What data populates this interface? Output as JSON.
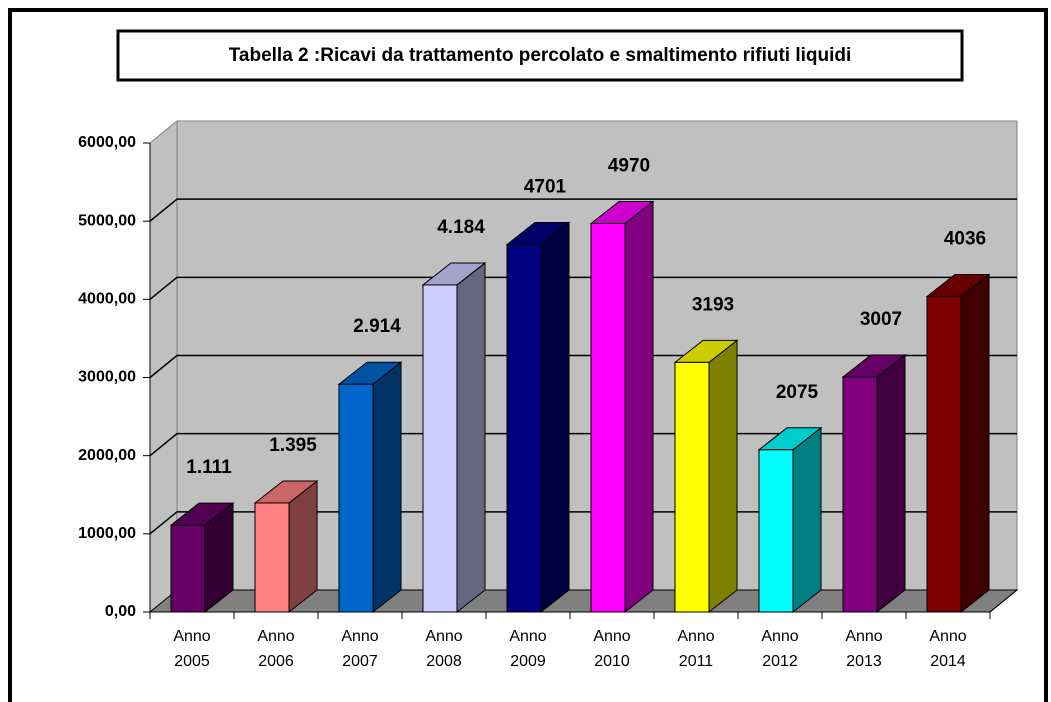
{
  "chart_data": {
    "type": "bar3d",
    "title": "Tabella 2 :Ricavi da trattamento percolato e smaltimento rifiuti liquidi",
    "categories": [
      "Anno 2005",
      "Anno 2006",
      "Anno 2007",
      "Anno 2008",
      "Anno 2009",
      "Anno 2010",
      "Anno 2011",
      "Anno 2012",
      "Anno 2013",
      "Anno 2014"
    ],
    "values": [
      1111,
      1395,
      2914,
      4184,
      4701,
      4970,
      3193,
      2075,
      3007,
      4036
    ],
    "value_labels": [
      "1.111",
      "1.395",
      "2.914",
      "4.184",
      "4701",
      "4970",
      "3193",
      "2075",
      "3007",
      "4036"
    ],
    "colors": [
      "#660066",
      "#ff8080",
      "#0066cc",
      "#ccccff",
      "#000080",
      "#ff00ff",
      "#ffff00",
      "#00ffff",
      "#800080",
      "#800000"
    ],
    "ylim": [
      0,
      6000
    ],
    "yticks": [
      {
        "value": 0,
        "label": "0,00"
      },
      {
        "value": 1000,
        "label": "1000,00"
      },
      {
        "value": 2000,
        "label": "2000,00"
      },
      {
        "value": 3000,
        "label": "3000,00"
      },
      {
        "value": 4000,
        "label": "4000,00"
      },
      {
        "value": 5000,
        "label": "5000,00"
      },
      {
        "value": 6000,
        "label": "6000,00"
      }
    ],
    "grid": true
  }
}
